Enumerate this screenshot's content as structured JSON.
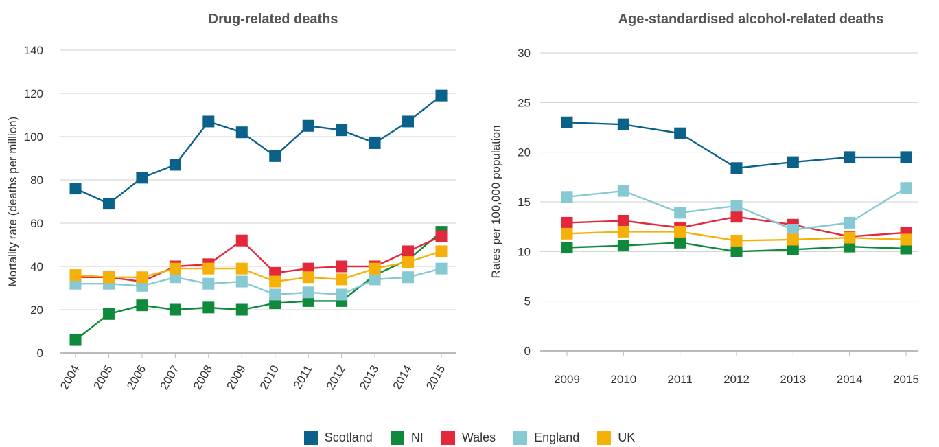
{
  "legend": [
    {
      "label": "Scotland",
      "color": "#0a6189"
    },
    {
      "label": "NI",
      "color": "#0f8a3c"
    },
    {
      "label": "Wales",
      "color": "#e2283a"
    },
    {
      "label": "England",
      "color": "#86c9d3"
    },
    {
      "label": "UK",
      "color": "#f5b10a"
    }
  ],
  "chart_data": [
    {
      "type": "line",
      "title": "Drug-related deaths",
      "xlabel": "",
      "ylabel": "Mortality rate (deaths per million)",
      "ylim": [
        0,
        140
      ],
      "yticks": [
        0,
        20,
        40,
        60,
        80,
        100,
        120,
        140
      ],
      "x": [
        "2004",
        "2005",
        "2006",
        "2007",
        "2008",
        "2009",
        "2010",
        "2011",
        "2012",
        "2013",
        "2014",
        "2015"
      ],
      "x_tick_rotation": "diagonal",
      "grid": true,
      "legend_position": "bottom",
      "series": [
        {
          "name": "Scotland",
          "color": "#0a6189",
          "values": [
            76,
            69,
            81,
            87,
            107,
            102,
            91,
            105,
            103,
            97,
            107,
            119
          ]
        },
        {
          "name": "NI",
          "color": "#0f8a3c",
          "values": [
            6,
            18,
            22,
            20,
            21,
            20,
            23,
            24,
            24,
            36,
            43,
            56
          ]
        },
        {
          "name": "Wales",
          "color": "#e2283a",
          "values": [
            35,
            35,
            33,
            40,
            41,
            52,
            37,
            39,
            40,
            40,
            47,
            54
          ]
        },
        {
          "name": "England",
          "color": "#86c9d3",
          "values": [
            32,
            32,
            31,
            35,
            32,
            33,
            27,
            28,
            27,
            34,
            35,
            39
          ]
        },
        {
          "name": "UK",
          "color": "#f5b10a",
          "values": [
            36,
            35,
            35,
            39,
            39,
            39,
            33,
            35,
            34,
            39,
            42,
            47
          ]
        }
      ]
    },
    {
      "type": "line",
      "title": "Age-standardised alcohol-related deaths",
      "xlabel": "",
      "ylabel": "Rates per 100,000 population",
      "ylim": [
        0,
        30
      ],
      "yticks": [
        0,
        5,
        10,
        15,
        20,
        25,
        30
      ],
      "x": [
        "2009",
        "2010",
        "2011",
        "2012",
        "2013",
        "2014",
        "2015"
      ],
      "x_tick_rotation": "none",
      "grid": true,
      "legend_position": "bottom",
      "series": [
        {
          "name": "Scotland",
          "color": "#0a6189",
          "values": [
            23.0,
            22.8,
            21.9,
            18.4,
            19.0,
            19.5,
            19.5
          ]
        },
        {
          "name": "NI",
          "color": "#0f8a3c",
          "values": [
            10.4,
            10.6,
            10.9,
            10.0,
            10.2,
            10.5,
            10.3
          ]
        },
        {
          "name": "Wales",
          "color": "#e2283a",
          "values": [
            12.9,
            13.1,
            12.4,
            13.5,
            12.7,
            11.5,
            11.9
          ]
        },
        {
          "name": "England",
          "color": "#86c9d3",
          "values": [
            15.5,
            16.1,
            13.9,
            14.6,
            12.2,
            12.9,
            16.4
          ]
        },
        {
          "name": "UK",
          "color": "#f5b10a",
          "values": [
            11.8,
            12.0,
            12.0,
            11.1,
            11.2,
            11.4,
            11.2
          ]
        }
      ]
    }
  ]
}
